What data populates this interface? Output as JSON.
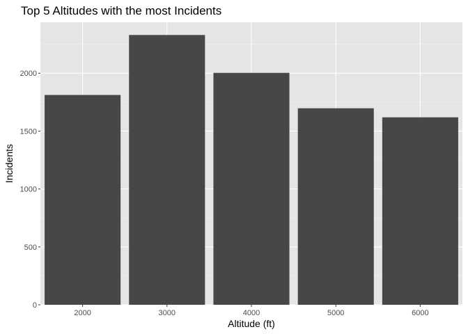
{
  "chart_data": {
    "type": "bar",
    "title": "Top 5 Altitudes with the most Incidents",
    "xlabel": "Altitude (ft)",
    "ylabel": "Incidents",
    "categories": [
      "2000",
      "3000",
      "4000",
      "5000",
      "6000"
    ],
    "values": [
      1812,
      2330,
      2003,
      1697,
      1619
    ],
    "ylim": [
      0,
      2440
    ],
    "yticks": [
      0,
      500,
      1000,
      1500,
      2000
    ],
    "ytick_labels": [
      "0",
      "500",
      "1000",
      "1500",
      "2000"
    ],
    "grid": true,
    "legend": "none",
    "colors": {
      "bar": "#474747",
      "panel_background": "#e5e5e5",
      "grid_major": "#ffffff",
      "grid_minor": "#f2f2f2",
      "tick": "#333333"
    }
  }
}
